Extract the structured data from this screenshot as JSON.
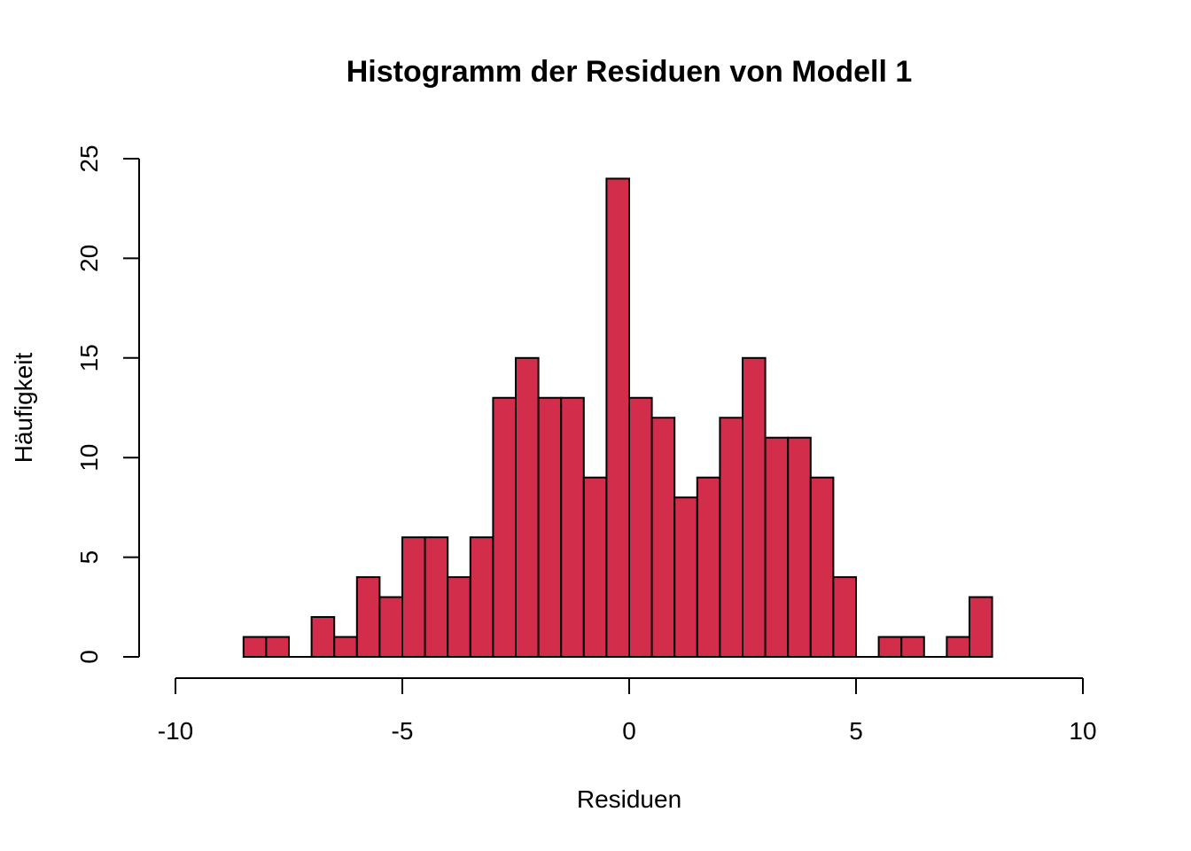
{
  "chart_data": {
    "type": "bar",
    "title": "Histogramm der Residuen von Modell 1",
    "xlabel": "Residuen",
    "ylabel": "Häufigkeit",
    "xlim": [
      -10,
      10
    ],
    "ylim": [
      0,
      25
    ],
    "xticks": [
      -10,
      -5,
      0,
      5,
      10
    ],
    "yticks": [
      0,
      5,
      10,
      15,
      20,
      25
    ],
    "bin_width": 0.5,
    "bin_start": -8.5,
    "counts": [
      1,
      1,
      0,
      2,
      1,
      4,
      3,
      6,
      6,
      4,
      6,
      13,
      15,
      13,
      13,
      9,
      24,
      13,
      12,
      8,
      9,
      12,
      15,
      11,
      11,
      9,
      4,
      0,
      1,
      1,
      0,
      1,
      3
    ],
    "bar_color": "#d22e4b",
    "grid": false
  }
}
